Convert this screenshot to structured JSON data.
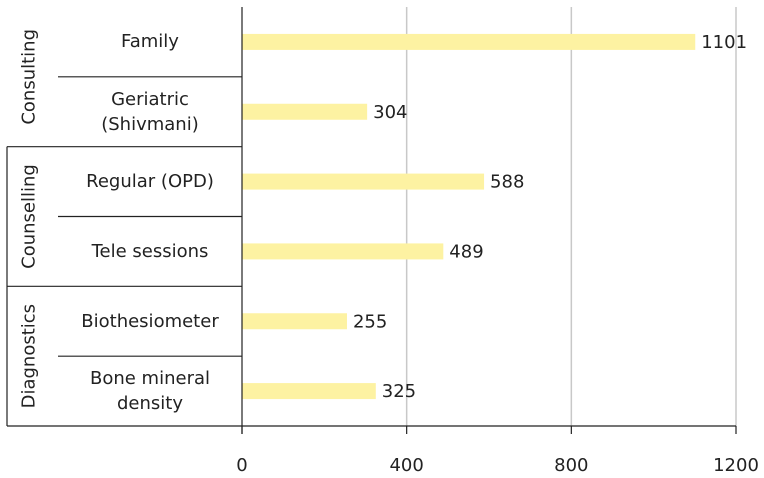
{
  "chart_data": {
    "type": "bar",
    "orientation": "horizontal",
    "color": "#fdf2a2",
    "groups": [
      {
        "name": "Consulting",
        "categories": [
          "Family",
          "Geriatric (Shivmani)"
        ],
        "values": [
          1101,
          304
        ]
      },
      {
        "name": "Counselling",
        "categories": [
          "Regular (OPD)",
          "Tele sessions"
        ],
        "values": [
          588,
          489
        ]
      },
      {
        "name": "Diagnostics",
        "categories": [
          "Biothesiometer",
          "Bone mineral density"
        ],
        "values": [
          255,
          325
        ]
      }
    ],
    "xlim": [
      0,
      1200
    ],
    "xticks": [
      0,
      400,
      800,
      1200
    ],
    "grid": true
  }
}
